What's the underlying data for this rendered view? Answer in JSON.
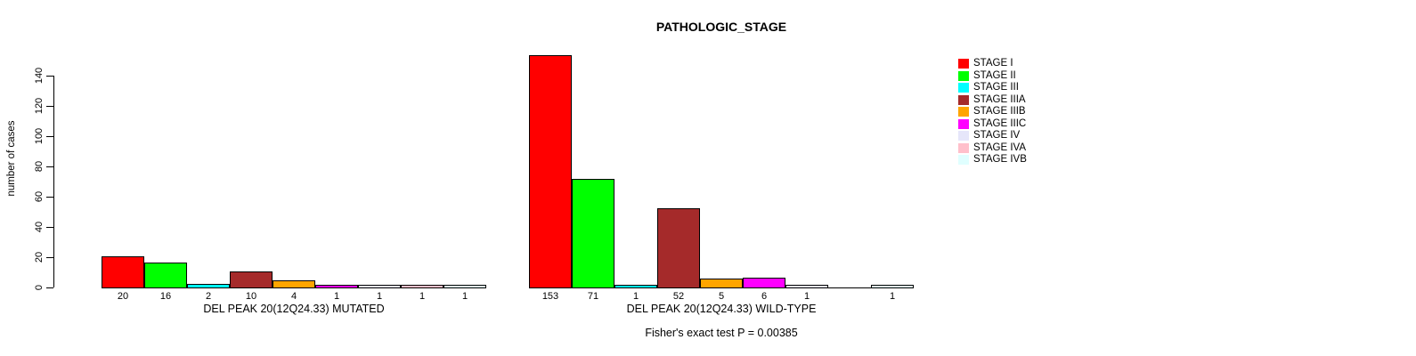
{
  "chart_data": {
    "type": "bar",
    "title": "PATHOLOGIC_STAGE",
    "ylabel": "number of cases",
    "ylim": [
      0,
      150
    ],
    "yticks": [
      0,
      20,
      40,
      60,
      80,
      100,
      120,
      140
    ],
    "grid": false,
    "legend_position": "right",
    "categories": [
      "STAGE I",
      "STAGE II",
      "STAGE III",
      "STAGE IIIA",
      "STAGE IIIB",
      "STAGE IIIC",
      "STAGE IV",
      "STAGE IVA",
      "STAGE IVB"
    ],
    "stage_colors": [
      "#FF0000",
      "#00FF00",
      "#00FFFF",
      "#A52A2A",
      "#FFA500",
      "#FF00FF",
      "#E6E6FA",
      "#FFC0CB",
      "#E0FFFF"
    ],
    "series": [
      {
        "name": "DEL PEAK 20(12Q24.33) MUTATED",
        "values": [
          20,
          16,
          2,
          10,
          4,
          1,
          1,
          1,
          1
        ]
      },
      {
        "name": "DEL PEAK 20(12Q24.33) WILD-TYPE",
        "values": [
          153,
          71,
          1,
          52,
          5,
          6,
          1,
          0,
          1
        ]
      }
    ],
    "annotation": "Fisher's exact test P = 0.00385"
  },
  "header": {
    "title": "PATHOLOGIC_STAGE"
  },
  "y_axis": {
    "label": "number of cases"
  },
  "footer": {
    "note": "Fisher's exact test P = 0.00385"
  }
}
